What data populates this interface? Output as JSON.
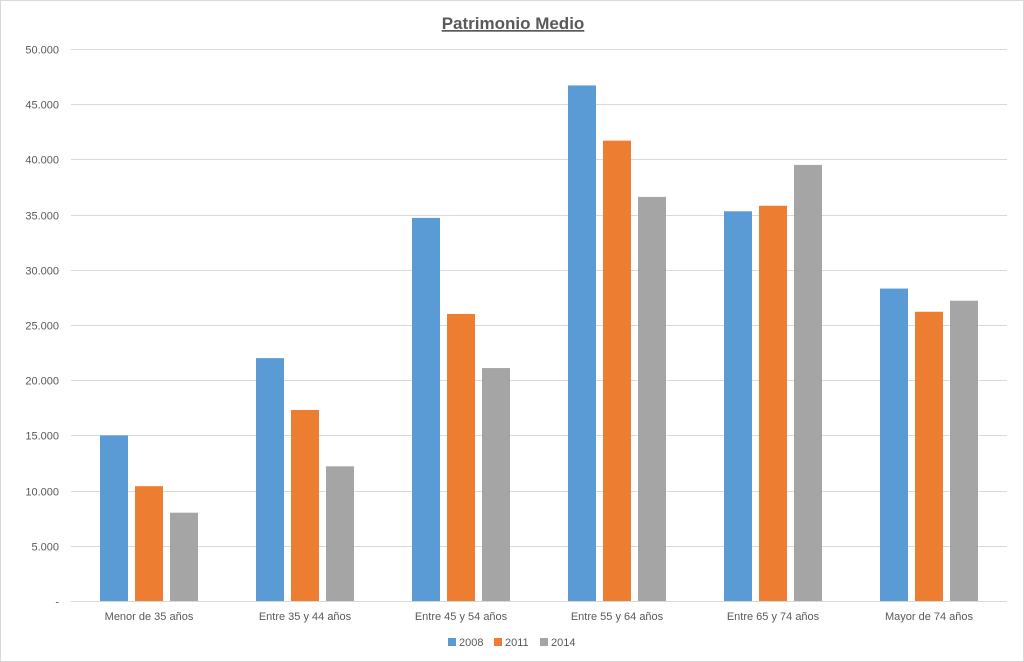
{
  "chart_data": {
    "type": "bar",
    "title": "Patrimonio Medio",
    "categories": [
      "Menor de 35 años",
      "Entre 35 y 44 años",
      "Entre 45 y 54 años",
      "Entre 55 y 64 años",
      "Entre 65 y 74 años",
      "Mayor de 74 años"
    ],
    "series": [
      {
        "name": "2008",
        "color": "#5b9bd5",
        "values": [
          15000,
          22000,
          34700,
          46700,
          35300,
          28300
        ]
      },
      {
        "name": "2011",
        "color": "#ed7d31",
        "values": [
          10400,
          17300,
          26000,
          41700,
          35800,
          26200
        ]
      },
      {
        "name": "2014",
        "color": "#a5a5a5",
        "values": [
          8000,
          12200,
          21100,
          36600,
          39500,
          27200
        ]
      }
    ],
    "ylim": [
      0,
      50000
    ],
    "yticks": [
      {
        "value": 0,
        "label": "-"
      },
      {
        "value": 5000,
        "label": "5.000"
      },
      {
        "value": 10000,
        "label": "10.000"
      },
      {
        "value": 15000,
        "label": "15.000"
      },
      {
        "value": 20000,
        "label": "20.000"
      },
      {
        "value": 25000,
        "label": "25.000"
      },
      {
        "value": 30000,
        "label": "30.000"
      },
      {
        "value": 35000,
        "label": "35.000"
      },
      {
        "value": 40000,
        "label": "40.000"
      },
      {
        "value": 45000,
        "label": "45.000"
      },
      {
        "value": 50000,
        "label": "50.000"
      }
    ],
    "grid": true,
    "legend": "bottom-center",
    "xlabel": "",
    "ylabel": ""
  }
}
